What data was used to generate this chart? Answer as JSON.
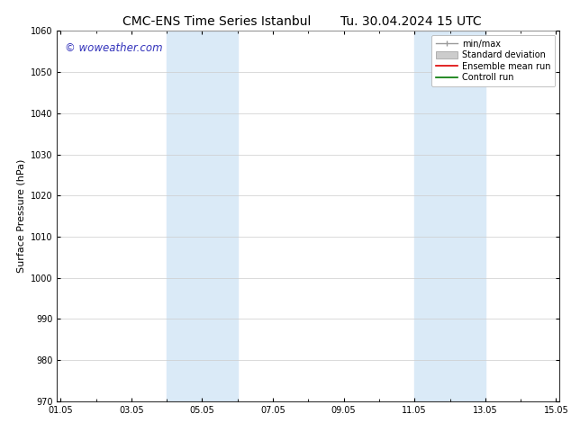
{
  "title_left": "CMC-ENS Time Series Istanbul",
  "title_right": "Tu. 30.04.2024 15 UTC",
  "ylabel": "Surface Pressure (hPa)",
  "ylim": [
    970,
    1060
  ],
  "yticks": [
    970,
    980,
    990,
    1000,
    1010,
    1020,
    1030,
    1040,
    1050,
    1060
  ],
  "xtick_labels": [
    "01.05",
    "03.05",
    "05.05",
    "07.05",
    "09.05",
    "11.05",
    "13.05",
    "15.05"
  ],
  "xtick_positions": [
    0,
    2,
    4,
    6,
    8,
    10,
    12,
    14
  ],
  "xlim": [
    -0.1,
    14.1
  ],
  "shaded_regions": [
    {
      "xmin": 3.0,
      "xmax": 4.0,
      "color": "#daeaf7"
    },
    {
      "xmin": 4.0,
      "xmax": 5.0,
      "color": "#daeaf7"
    },
    {
      "xmin": 10.0,
      "xmax": 11.0,
      "color": "#daeaf7"
    },
    {
      "xmin": 11.0,
      "xmax": 12.0,
      "color": "#daeaf7"
    }
  ],
  "watermark_text": "© woweather.com",
  "watermark_color": "#3333bb",
  "legend_entries": [
    {
      "label": "min/max"
    },
    {
      "label": "Standard deviation"
    },
    {
      "label": "Ensemble mean run"
    },
    {
      "label": "Controll run"
    }
  ],
  "legend_colors": [
    "#999999",
    "#cccccc",
    "#dd0000",
    "#007700"
  ],
  "background_color": "#ffffff",
  "grid_color": "#cccccc",
  "title_fontsize": 10,
  "axis_fontsize": 8,
  "tick_fontsize": 7,
  "legend_fontsize": 7
}
